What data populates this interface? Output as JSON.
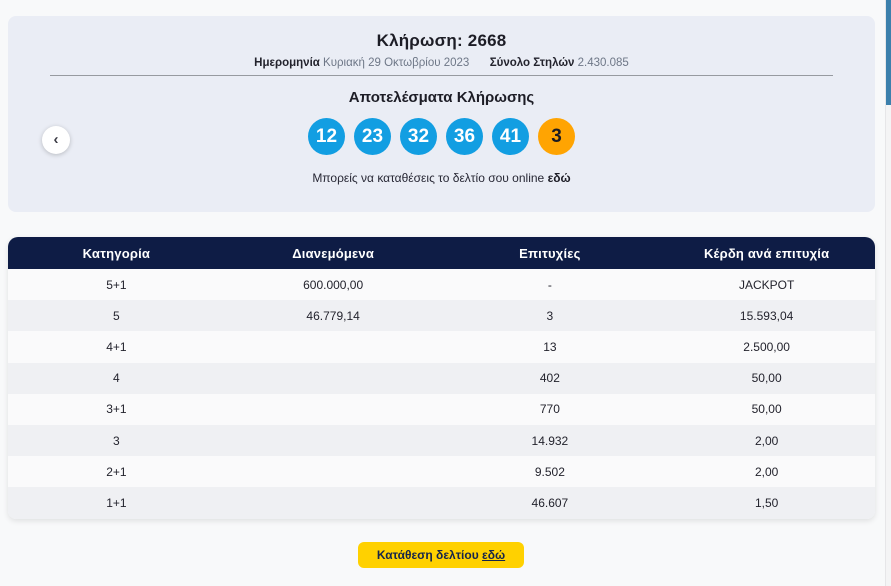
{
  "colors": {
    "ball_blue": "#129EE2",
    "ball_orange": "#FFA402",
    "table_header_navy": "#0E1C45",
    "button_yellow": "#FFD100",
    "card_background": "#EAEDF5"
  },
  "draw": {
    "title": "Κλήρωση: 2668",
    "date_label": "Ημερομηνία",
    "date_value": "Κυριακή 29 Οκτωβρίου 2023",
    "columns_label": "Σύνολο Στηλών",
    "columns_value": "2.430.085",
    "results_title": "Αποτελέσματα Κλήρωσης",
    "numbers": [
      "12",
      "23",
      "32",
      "36",
      "41"
    ],
    "joker": "3",
    "online_text": "Μπορείς να καταθέσεις το δελτίο σου online",
    "online_link": "εδώ"
  },
  "nav": {
    "prev_icon": "‹"
  },
  "table": {
    "headers": [
      "Κατηγορία",
      "Διανεμόμενα",
      "Επιτυχίες",
      "Κέρδη ανά επιτυχία"
    ],
    "rows": [
      [
        "5+1",
        "600.000,00",
        "-",
        "JACKPOT"
      ],
      [
        "5",
        "46.779,14",
        "3",
        "15.593,04"
      ],
      [
        "4+1",
        "",
        "13",
        "2.500,00"
      ],
      [
        "4",
        "",
        "402",
        "50,00"
      ],
      [
        "3+1",
        "",
        "770",
        "50,00"
      ],
      [
        "3",
        "",
        "14.932",
        "2,00"
      ],
      [
        "2+1",
        "",
        "9.502",
        "2,00"
      ],
      [
        "1+1",
        "",
        "46.607",
        "1,50"
      ]
    ]
  },
  "footer": {
    "button_text": "Κατάθεση δελτίου",
    "button_link": "εδώ"
  }
}
